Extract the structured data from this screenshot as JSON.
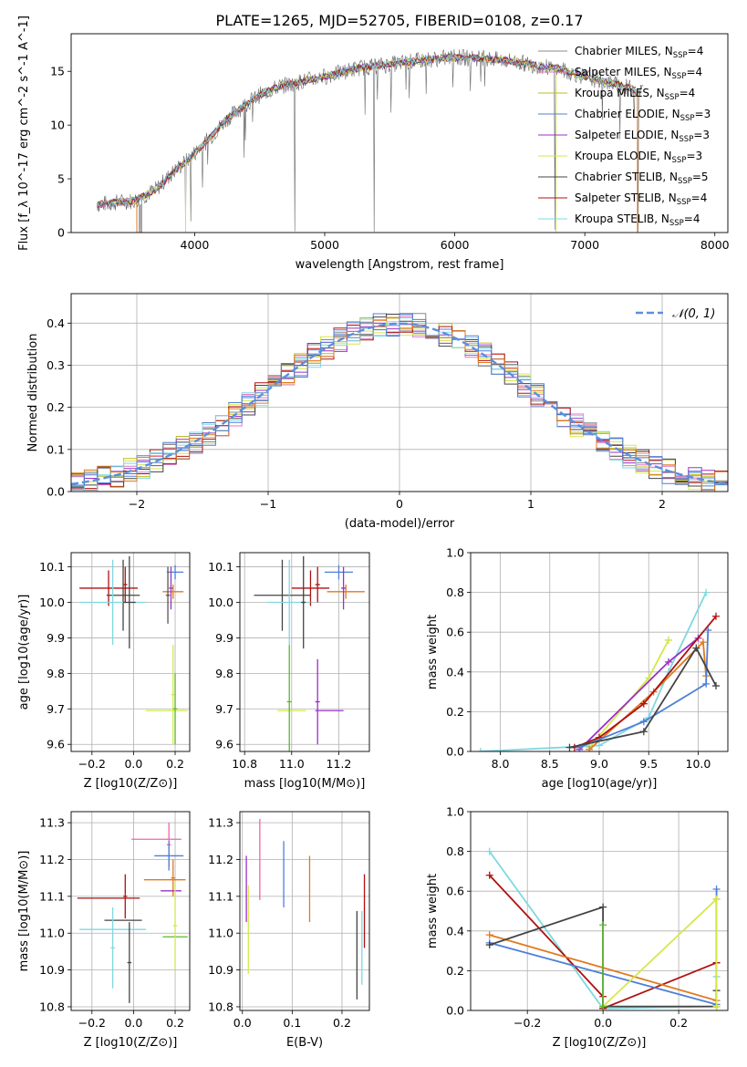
{
  "figure_title": "PLATE=1265, MJD=52705, FIBERID=0108, z=0.17",
  "colors": {
    "Chabrier MILES": "#888888",
    "Salpeter MILES": "#e377c2",
    "Kroupa MILES": "#bcbd22",
    "Chabrier ELODIE": "#5b7fc9",
    "Salpeter ELODIE": "#9b30c8",
    "Kroupa ELODIE": "#d4e84a",
    "Chabrier STELIB": "#444444",
    "Salpeter STELIB": "#b01010",
    "Kroupa STELIB": "#7fd8e0",
    "blue": "#4e7fd8",
    "orange": "#e07a20",
    "green": "#5cb82a",
    "pink": "#ee66aa",
    "dark": "#555555",
    "normal_curve": "#5b8fdd"
  },
  "chart_data": [
    {
      "id": "spectrum",
      "type": "line",
      "title": "PLATE=1265, MJD=52705, FIBERID=0108, z=0.17",
      "xlabel": "wavelength [Angstrom, rest frame]",
      "ylabel": "Flux [f_λ 10^-17 erg cm^-2 s^-1 A^-1]",
      "xlim": [
        3050,
        8100
      ],
      "ylim": [
        0,
        18.5
      ],
      "xticks": [
        4000,
        5000,
        6000,
        7000,
        8000
      ],
      "yticks": [
        0,
        5,
        10,
        15
      ],
      "legend_position": "right",
      "legend": [
        {
          "name": "Chabrier MILES",
          "label": "Chabrier MILES, N",
          "sub": "SSP",
          "tail": "=4"
        },
        {
          "name": "Salpeter MILES",
          "label": "Salpeter MILES, N",
          "sub": "SSP",
          "tail": "=4"
        },
        {
          "name": "Kroupa MILES",
          "label": "Kroupa MILES, N",
          "sub": "SSP",
          "tail": "=4"
        },
        {
          "name": "Chabrier ELODIE",
          "label": "Chabrier ELODIE, N",
          "sub": "SSP",
          "tail": "=3"
        },
        {
          "name": "Salpeter ELODIE",
          "label": "Salpeter ELODIE, N",
          "sub": "SSP",
          "tail": "=3"
        },
        {
          "name": "Kroupa ELODIE",
          "label": "Kroupa ELODIE, N",
          "sub": "SSP",
          "tail": "=3"
        },
        {
          "name": "Chabrier STELIB",
          "label": "Chabrier STELIB, N",
          "sub": "SSP",
          "tail": "=5"
        },
        {
          "name": "Salpeter STELIB",
          "label": "Salpeter STELIB, N",
          "sub": "SSP",
          "tail": "=4"
        },
        {
          "name": "Kroupa STELIB",
          "label": "Kroupa STELIB, N",
          "sub": "SSP",
          "tail": "=4"
        }
      ],
      "continuum": [
        [
          3250,
          2.6
        ],
        [
          3400,
          2.8
        ],
        [
          3550,
          3.0
        ],
        [
          3700,
          4.0
        ],
        [
          3850,
          5.8
        ],
        [
          3950,
          6.8
        ],
        [
          4100,
          8.6
        ],
        [
          4250,
          10.6
        ],
        [
          4400,
          12.0
        ],
        [
          4500,
          12.8
        ],
        [
          4650,
          13.6
        ],
        [
          4800,
          14.0
        ],
        [
          4950,
          14.4
        ],
        [
          5100,
          14.8
        ],
        [
          5250,
          15.3
        ],
        [
          5400,
          15.5
        ],
        [
          5600,
          15.8
        ],
        [
          5800,
          16.1
        ],
        [
          6000,
          16.3
        ],
        [
          6200,
          16.2
        ],
        [
          6400,
          16.0
        ],
        [
          6600,
          15.6
        ],
        [
          6800,
          15.2
        ],
        [
          7000,
          14.5
        ],
        [
          7200,
          13.9
        ],
        [
          7400,
          13.3
        ],
        [
          7450,
          13.2
        ]
      ],
      "model_range": [
        3250,
        7400
      ],
      "absorption_lines": [
        {
          "x": 3590,
          "depth": 3.0
        },
        {
          "x": 3930,
          "depth": 6.8
        },
        {
          "x": 3970,
          "depth": 6.0
        },
        {
          "x": 4770,
          "depth": 13.8
        },
        {
          "x": 5380,
          "depth": 15.4
        },
        {
          "x": 6770,
          "depth": 15.0
        },
        {
          "x": 7410,
          "depth": 13.2
        }
      ]
    },
    {
      "id": "residuals",
      "type": "line",
      "xlabel": "(data-model)/error",
      "ylabel": "Normed distribution",
      "xlim": [
        -2.5,
        2.5
      ],
      "ylim": [
        0,
        0.47
      ],
      "xticks": [
        -2,
        -1,
        0,
        1,
        2
      ],
      "yticks": [
        0.0,
        0.1,
        0.2,
        0.3,
        0.4
      ],
      "legend_position": "top-right",
      "legend_label": "𝒩(0, 1)",
      "bin_width": 0.1
    },
    {
      "id": "age_vs_Z",
      "type": "scatter",
      "xlabel": "Z [log10(Z/Z⊙)]",
      "ylabel": "age  [log10(age/yr)]",
      "xlim": [
        -0.3,
        0.27
      ],
      "ylim": [
        9.58,
        10.14
      ],
      "xticks": [
        -0.2,
        0.0,
        0.2
      ],
      "yticks": [
        9.6,
        9.7,
        9.8,
        9.9,
        10.0,
        10.1
      ],
      "points": [
        {
          "c": "blue",
          "x": 0.2,
          "xerr": 0.04,
          "y": 10.085,
          "yerr": 0.02
        },
        {
          "c": "orange",
          "x": 0.19,
          "xerr": 0.05,
          "y": 10.03,
          "yerr": 0.02
        },
        {
          "c": "dark",
          "x": 0.165,
          "xerr": 0.01,
          "y": 10.02,
          "yerr": 0.08
        },
        {
          "c": "Salpeter ELODIE",
          "x": 0.18,
          "xerr": 0.01,
          "y": 10.04,
          "yerr": 0.06
        },
        {
          "c": "Salpeter STELIB",
          "x": -0.12,
          "xerr": 0.14,
          "y": 10.04,
          "yerr": 0.05
        },
        {
          "c": "Chabrier STELIB",
          "x": -0.05,
          "xerr": 0.08,
          "y": 10.02,
          "yerr": 0.1
        },
        {
          "c": "Kroupa STELIB",
          "x": -0.1,
          "xerr": 0.16,
          "y": 10.0,
          "yerr": 0.12
        },
        {
          "c": "Chabrier STELIB",
          "x": -0.02,
          "xerr": 0.03,
          "y": 10.0,
          "yerr": 0.13
        },
        {
          "c": "Salpeter STELIB",
          "x": -0.04,
          "xerr": 0.01,
          "y": 10.05,
          "yerr": 0.05
        },
        {
          "c": "Kroupa ELODIE",
          "x": 0.19,
          "xerr": 0.01,
          "y": 9.74,
          "yerr": 0.14
        },
        {
          "c": "Kroupa ELODIE",
          "x": 0.16,
          "xerr": 0.1,
          "y": 9.695,
          "yerr": 0.0
        },
        {
          "c": "green",
          "x": 0.2,
          "xerr": 0.01,
          "y": 9.7,
          "yerr": 0.1
        }
      ]
    },
    {
      "id": "age_vs_mass",
      "type": "scatter",
      "xlabel": "mass [log10(M/M⊙)]",
      "xlim": [
        10.78,
        11.33
      ],
      "ylim": [
        9.58,
        10.14
      ],
      "xticks": [
        10.8,
        11.0,
        11.2
      ],
      "yticks": [
        9.6,
        9.7,
        9.8,
        9.9,
        10.0,
        10.1
      ],
      "points": [
        {
          "c": "blue",
          "x": 11.2,
          "xerr": 0.06,
          "y": 10.085,
          "yerr": 0.02
        },
        {
          "c": "orange",
          "x": 11.23,
          "xerr": 0.08,
          "y": 10.03,
          "yerr": 0.02
        },
        {
          "c": "Salpeter ELODIE",
          "x": 11.22,
          "xerr": 0.01,
          "y": 10.04,
          "yerr": 0.06
        },
        {
          "c": "Salpeter STELIB",
          "x": 11.08,
          "xerr": 0.08,
          "y": 10.04,
          "yerr": 0.05
        },
        {
          "c": "Salpeter STELIB",
          "x": 11.11,
          "xerr": 0.01,
          "y": 10.05,
          "yerr": 0.05
        },
        {
          "c": "Chabrier STELIB",
          "x": 10.96,
          "xerr": 0.12,
          "y": 10.02,
          "yerr": 0.1
        },
        {
          "c": "Kroupa STELIB",
          "x": 10.99,
          "xerr": 0.09,
          "y": 10.0,
          "yerr": 0.12
        },
        {
          "c": "Chabrier STELIB",
          "x": 11.05,
          "xerr": 0.01,
          "y": 10.0,
          "yerr": 0.13
        },
        {
          "c": "Salpeter ELODIE",
          "x": 11.16,
          "xerr": 0.06,
          "y": 9.695,
          "yerr": 0.0
        },
        {
          "c": "Salpeter ELODIE",
          "x": 11.11,
          "xerr": 0.01,
          "y": 9.72,
          "yerr": 0.12
        },
        {
          "c": "Kroupa ELODIE",
          "x": 11.0,
          "xerr": 0.06,
          "y": 9.695,
          "yerr": 0.0
        },
        {
          "c": "green",
          "x": 10.99,
          "xerr": 0.01,
          "y": 9.72,
          "yerr": 0.16
        }
      ]
    },
    {
      "id": "mass_weight_vs_age",
      "type": "line",
      "xlabel": "age  [log10(age/yr)]",
      "ylabel": "mass weight",
      "xlim": [
        7.7,
        10.3
      ],
      "ylim": [
        0,
        1.0
      ],
      "xticks": [
        8.0,
        8.5,
        9.0,
        9.5,
        10.0
      ],
      "yticks": [
        0.0,
        0.2,
        0.4,
        0.6,
        0.8,
        1.0
      ],
      "series": [
        {
          "c": "Kroupa STELIB",
          "x": [
            7.8,
            9.0,
            9.5,
            9.7,
            10.08
          ],
          "y": [
            0.0,
            0.03,
            0.17,
            0.4,
            0.8
          ]
        },
        {
          "c": "Kroupa ELODIE",
          "x": [
            8.9,
            9.5,
            9.7,
            9.7
          ],
          "y": [
            0.02,
            0.37,
            0.56,
            0.56
          ]
        },
        {
          "c": "Salpeter ELODIE",
          "x": [
            8.8,
            9.7,
            10.0
          ],
          "y": [
            0.01,
            0.45,
            0.57
          ]
        },
        {
          "c": "orange",
          "x": [
            8.9,
            9.55,
            10.05,
            10.08
          ],
          "y": [
            0.01,
            0.3,
            0.55,
            0.38
          ]
        },
        {
          "c": "Salpeter STELIB",
          "x": [
            8.75,
            9.0,
            9.45,
            10.18
          ],
          "y": [
            0.02,
            0.07,
            0.24,
            0.68
          ]
        },
        {
          "c": "blue",
          "x": [
            8.8,
            9.45,
            10.08,
            10.1
          ],
          "y": [
            0.02,
            0.15,
            0.34,
            0.61
          ]
        },
        {
          "c": "Chabrier STELIB",
          "x": [
            8.7,
            9.45,
            9.98,
            10.18
          ],
          "y": [
            0.02,
            0.1,
            0.52,
            0.33
          ]
        }
      ]
    },
    {
      "id": "mass_vs_Z",
      "type": "scatter",
      "xlabel": "Z [log10(Z/Z⊙)]",
      "ylabel": "mass [log10(M/M⊙)]",
      "xlim": [
        -0.3,
        0.27
      ],
      "ylim": [
        10.79,
        11.33
      ],
      "xticks": [
        -0.2,
        0.0,
        0.2
      ],
      "yticks": [
        10.8,
        10.9,
        11.0,
        11.1,
        11.2,
        11.3
      ],
      "points": [
        {
          "c": "pink",
          "x": 0.11,
          "xerr": 0.12,
          "y": 11.255,
          "yerr": 0.0
        },
        {
          "c": "pink",
          "x": 0.17,
          "xerr": 0.01,
          "y": 11.24,
          "yerr": 0.06
        },
        {
          "c": "blue",
          "x": 0.17,
          "xerr": 0.07,
          "y": 11.21,
          "yerr": 0.04
        },
        {
          "c": "orange",
          "x": 0.15,
          "xerr": 0.1,
          "y": 11.145,
          "yerr": 0.0
        },
        {
          "c": "orange",
          "x": 0.19,
          "xerr": 0.01,
          "y": 11.15,
          "yerr": 0.05
        },
        {
          "c": "Salpeter ELODIE",
          "x": 0.18,
          "xerr": 0.05,
          "y": 11.115,
          "yerr": 0.0
        },
        {
          "c": "Salpeter STELIB",
          "x": -0.12,
          "xerr": 0.15,
          "y": 11.095,
          "yerr": 0.0
        },
        {
          "c": "Salpeter STELIB",
          "x": -0.04,
          "xerr": 0.01,
          "y": 11.1,
          "yerr": 0.06
        },
        {
          "c": "Chabrier STELIB",
          "x": -0.05,
          "xerr": 0.09,
          "y": 11.035,
          "yerr": 0.0
        },
        {
          "c": "Kroupa STELIB",
          "x": -0.1,
          "xerr": 0.16,
          "y": 11.01,
          "yerr": 0.0
        },
        {
          "c": "Kroupa STELIB",
          "x": -0.1,
          "xerr": 0.01,
          "y": 10.96,
          "yerr": 0.11
        },
        {
          "c": "Chabrier STELIB",
          "x": -0.02,
          "xerr": 0.01,
          "y": 10.92,
          "yerr": 0.11
        },
        {
          "c": "green",
          "x": 0.2,
          "xerr": 0.06,
          "y": 10.99,
          "yerr": 0.0
        },
        {
          "c": "Kroupa ELODIE",
          "x": 0.2,
          "xerr": 0.01,
          "y": 11.02,
          "yerr": 0.12
        }
      ]
    },
    {
      "id": "mass_vs_EBV",
      "type": "scatter",
      "xlabel": "E(B-V)",
      "xlim": [
        -0.005,
        0.255
      ],
      "ylim": [
        10.79,
        11.33
      ],
      "xticks": [
        0.0,
        0.1,
        0.2
      ],
      "yticks": [
        10.8,
        10.9,
        11.0,
        11.1,
        11.2,
        11.3
      ],
      "points": [
        {
          "c": "pink",
          "x": 0.035,
          "xerr": 0.0,
          "y": 11.2,
          "yerr": 0.11
        },
        {
          "c": "Salpeter ELODIE",
          "x": 0.008,
          "xerr": 0.0,
          "y": 11.12,
          "yerr": 0.09
        },
        {
          "c": "Kroupa ELODIE",
          "x": 0.012,
          "xerr": 0.0,
          "y": 11.01,
          "yerr": 0.12
        },
        {
          "c": "blue",
          "x": 0.083,
          "xerr": 0.0,
          "y": 11.16,
          "yerr": 0.09
        },
        {
          "c": "orange",
          "x": 0.135,
          "xerr": 0.0,
          "y": 11.12,
          "yerr": 0.09
        },
        {
          "c": "Chabrier STELIB",
          "x": 0.23,
          "xerr": 0.0,
          "y": 10.94,
          "yerr": 0.12
        },
        {
          "c": "Kroupa STELIB",
          "x": 0.24,
          "xerr": 0.0,
          "y": 10.96,
          "yerr": 0.1
        },
        {
          "c": "Salpeter STELIB",
          "x": 0.245,
          "xerr": 0.0,
          "y": 11.06,
          "yerr": 0.1
        }
      ]
    },
    {
      "id": "mass_weight_vs_Z",
      "type": "line",
      "xlabel": "Z [log10(Z/Z⊙)]",
      "ylabel": "mass weight",
      "xlim": [
        -0.35,
        0.33
      ],
      "ylim": [
        0,
        1.0
      ],
      "xticks": [
        -0.2,
        0.0,
        0.2
      ],
      "yticks": [
        0.0,
        0.2,
        0.4,
        0.6,
        0.8,
        1.0
      ],
      "series": [
        {
          "c": "Kroupa STELIB",
          "x": [
            -0.3,
            0.0,
            0.3,
            0.3
          ],
          "y": [
            0.8,
            0.01,
            0.02,
            0.17
          ]
        },
        {
          "c": "Salpeter STELIB",
          "x": [
            -0.3,
            0.0,
            0.0,
            0.3
          ],
          "y": [
            0.68,
            0.07,
            0.01,
            0.24
          ]
        },
        {
          "c": "orange",
          "x": [
            -0.3,
            0.3,
            0.3
          ],
          "y": [
            0.38,
            0.05,
            0.56
          ]
        },
        {
          "c": "blue",
          "x": [
            -0.3,
            0.3,
            0.3
          ],
          "y": [
            0.34,
            0.03,
            0.61
          ]
        },
        {
          "c": "Chabrier STELIB",
          "x": [
            -0.3,
            0.0,
            0.0,
            0.3,
            0.3
          ],
          "y": [
            0.33,
            0.52,
            0.02,
            0.02,
            0.1
          ]
        },
        {
          "c": "Kroupa ELODIE",
          "x": [
            0.0,
            0.3,
            0.3
          ],
          "y": [
            0.02,
            0.56,
            0.02
          ]
        },
        {
          "c": "green",
          "x": [
            0.0,
            0.0
          ],
          "y": [
            0.02,
            0.43
          ]
        }
      ]
    }
  ]
}
